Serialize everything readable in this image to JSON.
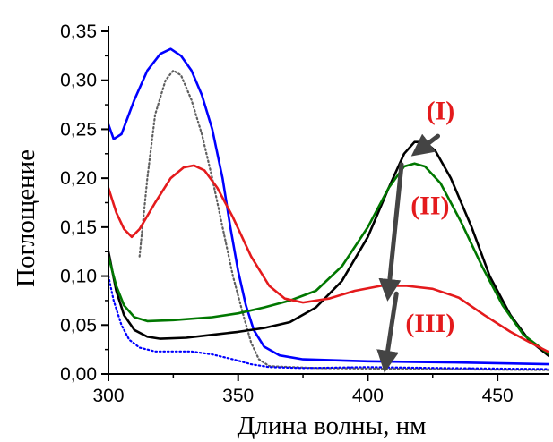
{
  "chart_data": {
    "type": "line",
    "title": "",
    "xlabel": "Длина волны, нм",
    "ylabel": "Поглощение",
    "xlim": [
      300,
      470
    ],
    "ylim": [
      0,
      0.35
    ],
    "xticks": [
      300,
      350,
      400,
      450
    ],
    "xtick_labels": [
      "300",
      "350",
      "400",
      "450"
    ],
    "yticks": [
      0,
      0.05,
      0.1,
      0.15,
      0.2,
      0.25,
      0.3,
      0.35
    ],
    "ytick_labels": [
      "0,00",
      "0,05",
      "0,10",
      "0,15",
      "0,20",
      "0,25",
      "0,30",
      "0,35"
    ],
    "grid": false,
    "series": [
      {
        "color": "#0000ff",
        "dash": "solid",
        "points": [
          [
            300,
            0.255
          ],
          [
            302,
            0.24
          ],
          [
            305,
            0.245
          ],
          [
            310,
            0.28
          ],
          [
            315,
            0.31
          ],
          [
            320,
            0.327
          ],
          [
            324,
            0.332
          ],
          [
            328,
            0.325
          ],
          [
            332,
            0.31
          ],
          [
            336,
            0.285
          ],
          [
            340,
            0.25
          ],
          [
            344,
            0.2
          ],
          [
            347,
            0.15
          ],
          [
            350,
            0.105
          ],
          [
            353,
            0.07
          ],
          [
            356,
            0.045
          ],
          [
            360,
            0.028
          ],
          [
            366,
            0.019
          ],
          [
            375,
            0.015
          ],
          [
            400,
            0.013
          ],
          [
            430,
            0.012
          ],
          [
            470,
            0.01
          ]
        ]
      },
      {
        "color": "#606060",
        "dash": "dot",
        "points": [
          [
            312,
            0.12
          ],
          [
            315,
            0.2
          ],
          [
            318,
            0.265
          ],
          [
            322,
            0.3
          ],
          [
            325,
            0.31
          ],
          [
            328,
            0.305
          ],
          [
            332,
            0.28
          ],
          [
            336,
            0.245
          ],
          [
            340,
            0.2
          ],
          [
            344,
            0.15
          ],
          [
            348,
            0.1
          ],
          [
            352,
            0.06
          ],
          [
            355,
            0.032
          ],
          [
            358,
            0.015
          ],
          [
            362,
            0.008
          ],
          [
            380,
            0.006
          ],
          [
            420,
            0.005
          ],
          [
            470,
            0.004
          ]
        ]
      },
      {
        "color": "#000000",
        "dash": "solid",
        "points": [
          [
            300,
            0.125
          ],
          [
            303,
            0.085
          ],
          [
            306,
            0.06
          ],
          [
            310,
            0.045
          ],
          [
            315,
            0.038
          ],
          [
            320,
            0.036
          ],
          [
            330,
            0.037
          ],
          [
            340,
            0.04
          ],
          [
            350,
            0.043
          ],
          [
            360,
            0.047
          ],
          [
            370,
            0.053
          ],
          [
            380,
            0.068
          ],
          [
            390,
            0.095
          ],
          [
            400,
            0.14
          ],
          [
            408,
            0.19
          ],
          [
            414,
            0.225
          ],
          [
            418,
            0.237
          ],
          [
            422,
            0.237
          ],
          [
            426,
            0.228
          ],
          [
            432,
            0.2
          ],
          [
            440,
            0.15
          ],
          [
            447,
            0.1
          ],
          [
            455,
            0.06
          ],
          [
            462,
            0.035
          ],
          [
            470,
            0.018
          ]
        ]
      },
      {
        "color": "#007700",
        "dash": "solid",
        "points": [
          [
            300,
            0.12
          ],
          [
            303,
            0.09
          ],
          [
            306,
            0.07
          ],
          [
            310,
            0.058
          ],
          [
            315,
            0.054
          ],
          [
            325,
            0.055
          ],
          [
            340,
            0.058
          ],
          [
            350,
            0.062
          ],
          [
            360,
            0.068
          ],
          [
            370,
            0.075
          ],
          [
            380,
            0.085
          ],
          [
            390,
            0.11
          ],
          [
            400,
            0.15
          ],
          [
            408,
            0.19
          ],
          [
            414,
            0.212
          ],
          [
            418,
            0.215
          ],
          [
            422,
            0.212
          ],
          [
            428,
            0.195
          ],
          [
            436,
            0.155
          ],
          [
            444,
            0.11
          ],
          [
            452,
            0.07
          ],
          [
            460,
            0.04
          ],
          [
            470,
            0.02
          ]
        ]
      },
      {
        "color": "#e41a1c",
        "dash": "solid",
        "points": [
          [
            300,
            0.19
          ],
          [
            303,
            0.165
          ],
          [
            306,
            0.148
          ],
          [
            309,
            0.14
          ],
          [
            312,
            0.148
          ],
          [
            318,
            0.175
          ],
          [
            324,
            0.2
          ],
          [
            329,
            0.211
          ],
          [
            333,
            0.213
          ],
          [
            337,
            0.208
          ],
          [
            342,
            0.19
          ],
          [
            348,
            0.16
          ],
          [
            355,
            0.12
          ],
          [
            362,
            0.09
          ],
          [
            368,
            0.077
          ],
          [
            375,
            0.073
          ],
          [
            385,
            0.077
          ],
          [
            395,
            0.085
          ],
          [
            405,
            0.09
          ],
          [
            415,
            0.09
          ],
          [
            425,
            0.087
          ],
          [
            435,
            0.078
          ],
          [
            445,
            0.06
          ],
          [
            455,
            0.043
          ],
          [
            462,
            0.033
          ],
          [
            470,
            0.022
          ]
        ]
      },
      {
        "color": "#0000ff",
        "dash": "dot",
        "points": [
          [
            300,
            0.1
          ],
          [
            302,
            0.075
          ],
          [
            305,
            0.05
          ],
          [
            308,
            0.035
          ],
          [
            312,
            0.027
          ],
          [
            318,
            0.023
          ],
          [
            325,
            0.023
          ],
          [
            332,
            0.023
          ],
          [
            340,
            0.02
          ],
          [
            348,
            0.015
          ],
          [
            355,
            0.01
          ],
          [
            362,
            0.007
          ],
          [
            375,
            0.006
          ],
          [
            400,
            0.007
          ],
          [
            430,
            0.006
          ],
          [
            470,
            0.005
          ]
        ]
      }
    ],
    "annotations": [
      {
        "text": "(I)",
        "x": 428,
        "y": 0.26
      },
      {
        "text": "(II)",
        "x": 424,
        "y": 0.163
      },
      {
        "text": "(III)",
        "x": 424,
        "y": 0.043
      }
    ],
    "arrows": [
      {
        "color": "#444444",
        "x1": 413,
        "y1": 0.214,
        "x2": 408,
        "y2": 0.085
      },
      {
        "color": "#444444",
        "x1": 411,
        "y1": 0.082,
        "x2": 407,
        "y2": 0.012
      },
      {
        "color": "#444444",
        "x1": 427,
        "y1": 0.243,
        "x2": 420,
        "y2": 0.229
      }
    ]
  }
}
